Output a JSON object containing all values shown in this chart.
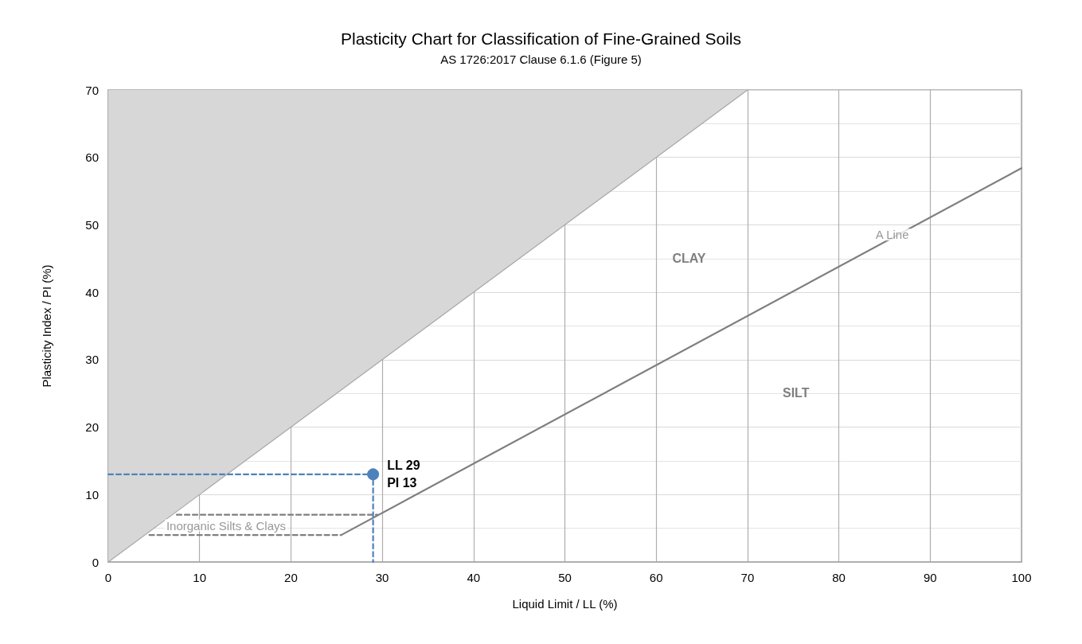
{
  "chart_data": {
    "type": "line",
    "title": "Plasticity Chart for Classification of Fine-Grained Soils",
    "subtitle": "AS 1726:2017 Clause 6.1.6 (Figure 5)",
    "xlabel": "Liquid Limit / LL (%)",
    "ylabel": "Plasticity Index / PI (%)",
    "xlim": [
      0,
      100
    ],
    "xticks": [
      0,
      10,
      20,
      30,
      40,
      50,
      60,
      70,
      80,
      90,
      100
    ],
    "ylim": [
      0,
      70
    ],
    "yticks": [
      0,
      10,
      20,
      30,
      40,
      50,
      60,
      70
    ],
    "grid": true,
    "series": [
      {
        "type": "area",
        "color": "#a6a6a6",
        "x": [
          0,
          70
        ],
        "values": [
          0,
          70
        ]
      },
      {
        "name": "A Line",
        "color": "#7f7f7f",
        "x": [
          25.5,
          100
        ],
        "values": [
          4,
          58.4
        ]
      },
      {
        "name": "Inorganic Silts & Clays",
        "color": "#7f7f7f",
        "line_style": "dashed",
        "x": [
          4.5,
          25.5
        ],
        "values": [
          4,
          4
        ]
      },
      {
        "color": "#7f7f7f",
        "line_style": "dashed",
        "x": [
          7.5,
          29.5
        ],
        "values": [
          7,
          7
        ]
      },
      {
        "color": "#4f81bd",
        "line_style": "dashed",
        "x": [
          0,
          29,
          29
        ],
        "values": [
          13,
          13,
          0
        ]
      },
      {
        "type": "scatter",
        "color": "#4f81bd",
        "marker": "circle",
        "x": [
          29
        ],
        "values": [
          13
        ],
        "value_labels": [
          "LL 29\nPI 13"
        ]
      }
    ],
    "annotations": [
      "CLAY",
      "SILT"
    ]
  }
}
